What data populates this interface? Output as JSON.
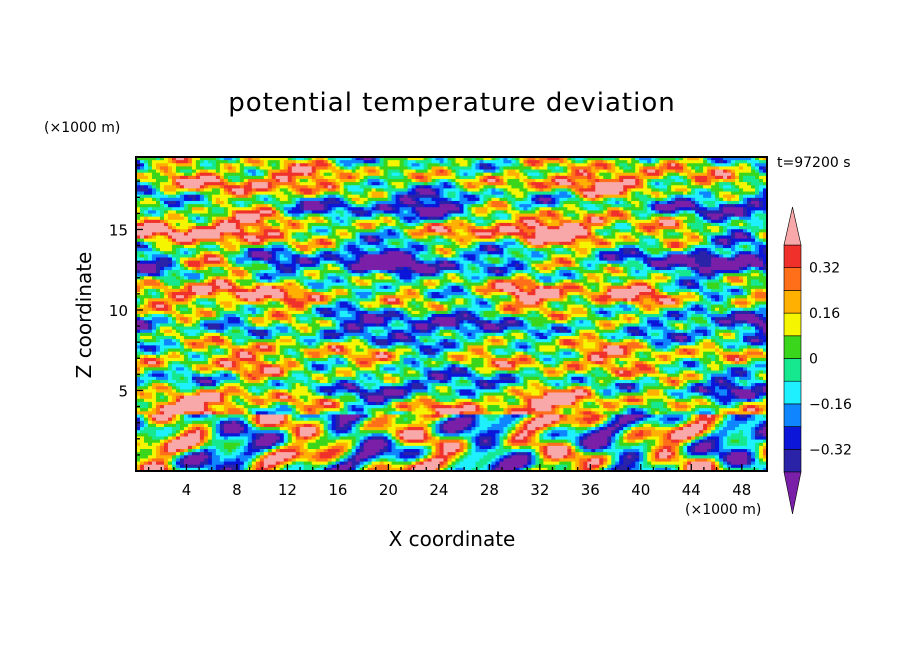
{
  "chart_data": {
    "type": "heatmap",
    "title": "potential temperature deviation",
    "xlabel": "X coordinate",
    "ylabel": "Z coordinate",
    "x_unit": "(×1000 m)",
    "z_unit": "(×1000 m)",
    "time_label": "t=97200 s",
    "xlim": [
      0,
      50
    ],
    "ylim": [
      0,
      19.5
    ],
    "x_ticks": [
      4,
      8,
      12,
      16,
      20,
      24,
      28,
      32,
      36,
      40,
      44,
      48
    ],
    "y_ticks": [
      5,
      10,
      15
    ],
    "colorbar": {
      "levels": [
        -0.4,
        -0.32,
        -0.24,
        -0.16,
        -0.08,
        0,
        0.08,
        0.16,
        0.24,
        0.32,
        0.4
      ],
      "tick_values": [
        0.32,
        0.16,
        0,
        -0.16,
        -0.32
      ],
      "tick_labels": [
        "0.32",
        "0.16",
        "0",
        "−0.16",
        "−0.32"
      ],
      "colors": [
        "#7a1fa8",
        "#2a23a8",
        "#0b16d8",
        "#0f86ff",
        "#1ef0ff",
        "#16e890",
        "#3ad61c",
        "#f5f500",
        "#ffb000",
        "#ff6f1a",
        "#f0302a",
        "#f8a8a8"
      ],
      "extend": "both"
    },
    "layer_heights": [
      {
        "z": 18.0,
        "level": 0.3
      },
      {
        "z": 16.5,
        "level": -0.3
      },
      {
        "z": 15.0,
        "level": 0.4
      },
      {
        "z": 13.0,
        "level": -0.4
      },
      {
        "z": 11.0,
        "level": 0.3
      },
      {
        "z": 9.0,
        "level": -0.3
      },
      {
        "z": 7.0,
        "level": 0.2
      },
      {
        "z": 5.0,
        "level": -0.35
      },
      {
        "z": 4.3,
        "level": 0.45
      }
    ]
  }
}
